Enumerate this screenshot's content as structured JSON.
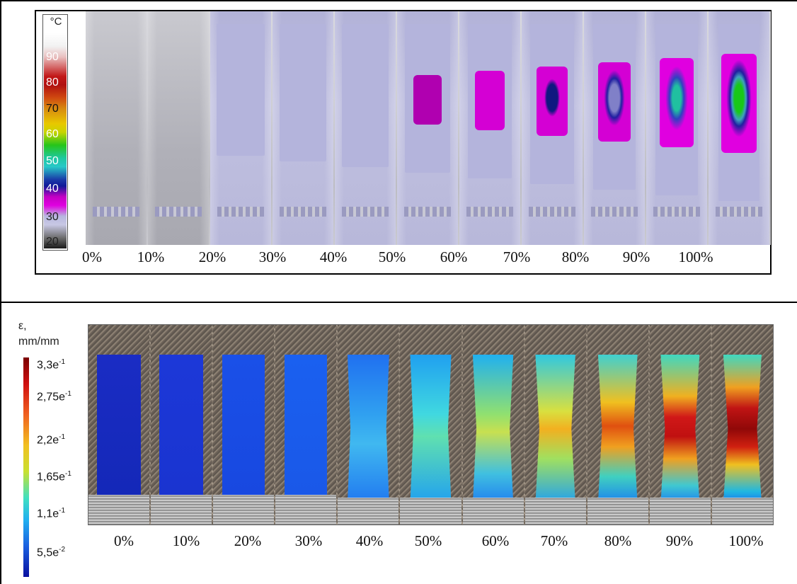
{
  "thermal": {
    "unit": "°C",
    "scale_labels": [
      "90",
      "80",
      "70",
      "60",
      "50",
      "40",
      "30",
      "20"
    ],
    "x_labels": [
      "0%",
      "10%",
      "20%",
      "30%",
      "40%",
      "50%",
      "60%",
      "70%",
      "80%",
      "90%",
      "100%"
    ]
  },
  "strain": {
    "unit_line1": "ε,",
    "unit_line2": "mm/mm",
    "scale_labels": [
      {
        "base": "3,3e",
        "exp": "-1"
      },
      {
        "base": "2,75e",
        "exp": "-1"
      },
      {
        "base": "2,2e",
        "exp": "-1"
      },
      {
        "base": "1,65e",
        "exp": "-1"
      },
      {
        "base": "1,1e",
        "exp": "-1"
      },
      {
        "base": "5,5e",
        "exp": "-2"
      }
    ],
    "x_labels": [
      "0%",
      "10%",
      "20%",
      "30%",
      "40%",
      "50%",
      "60%",
      "70%",
      "80%",
      "90%",
      "100%"
    ]
  },
  "colors": {
    "thermal_spec_base": "#b8b8dc",
    "thermal_hot_magenta": "#d200d2",
    "strain_low": "#1428c8",
    "strain_high": "#c81414"
  }
}
